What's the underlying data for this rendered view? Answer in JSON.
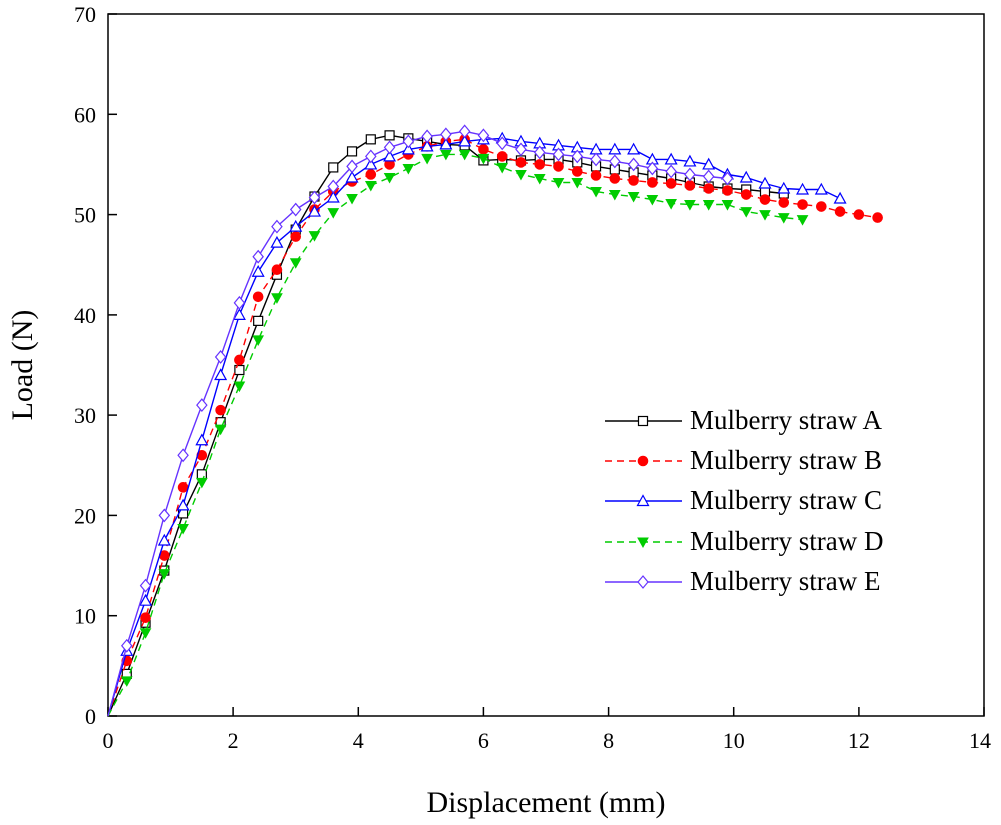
{
  "chart_data": {
    "type": "line",
    "title": "",
    "xlabel": "Displacement (mm)",
    "ylabel": "Load (N)",
    "xlim": [
      0,
      14
    ],
    "ylim": [
      0,
      70
    ],
    "x_ticks": [
      0,
      2,
      4,
      6,
      8,
      10,
      12,
      14
    ],
    "y_ticks": [
      0,
      10,
      20,
      30,
      40,
      50,
      60,
      70
    ],
    "grid": false,
    "legend_position": "center-right",
    "series": [
      {
        "name": "Mulberry straw A",
        "color": "#000000",
        "dashed": false,
        "marker": "square-open",
        "x": [
          0,
          0.3,
          0.6,
          0.9,
          1.2,
          1.5,
          1.8,
          2.1,
          2.4,
          2.7,
          3.0,
          3.3,
          3.6,
          3.9,
          4.2,
          4.5,
          4.8,
          5.1,
          5.4,
          5.7,
          6.0,
          6.3,
          6.6,
          6.9,
          7.2,
          7.5,
          7.8,
          8.1,
          8.4,
          8.7,
          9.0,
          9.3,
          9.6,
          9.9,
          10.2,
          10.5,
          10.8
        ],
        "y": [
          0,
          4.2,
          9.3,
          14.5,
          20.2,
          24.1,
          29.3,
          34.5,
          39.4,
          44.0,
          48.5,
          51.8,
          54.7,
          56.3,
          57.5,
          57.9,
          57.6,
          57.3,
          57.0,
          56.9,
          55.4,
          55.5,
          55.4,
          55.5,
          55.5,
          55.2,
          54.8,
          54.5,
          54.2,
          53.9,
          53.6,
          53.2,
          52.8,
          52.6,
          52.5,
          52.3,
          52.1
        ]
      },
      {
        "name": "Mulberry straw B",
        "color": "#ff0000",
        "dashed": true,
        "marker": "circle-filled",
        "x": [
          0,
          0.3,
          0.6,
          0.9,
          1.2,
          1.5,
          1.8,
          2.1,
          2.4,
          2.7,
          3.0,
          3.3,
          3.6,
          3.9,
          4.2,
          4.5,
          4.8,
          5.1,
          5.4,
          5.7,
          6.0,
          6.3,
          6.6,
          6.9,
          7.2,
          7.5,
          7.8,
          8.1,
          8.4,
          8.7,
          9.0,
          9.3,
          9.6,
          9.9,
          10.2,
          10.5,
          10.8,
          11.1,
          11.4,
          11.7,
          12.0,
          12.3
        ],
        "y": [
          0,
          5.5,
          9.8,
          16.0,
          22.8,
          26.0,
          30.5,
          35.5,
          41.8,
          44.5,
          47.8,
          50.5,
          52.3,
          53.3,
          54.0,
          55.0,
          56.0,
          56.8,
          57.3,
          57.5,
          56.5,
          55.8,
          55.2,
          55.0,
          54.8,
          54.3,
          53.9,
          53.6,
          53.4,
          53.2,
          53.1,
          52.9,
          52.6,
          52.4,
          52.0,
          51.5,
          51.2,
          51.0,
          50.8,
          50.3,
          50.0,
          49.7
        ]
      },
      {
        "name": "Mulberry straw C",
        "color": "#0000ff",
        "dashed": false,
        "marker": "triangle-open",
        "x": [
          0,
          0.3,
          0.6,
          0.9,
          1.2,
          1.5,
          1.8,
          2.1,
          2.4,
          2.7,
          3.0,
          3.3,
          3.6,
          3.9,
          4.2,
          4.5,
          4.8,
          5.1,
          5.4,
          5.7,
          6.0,
          6.3,
          6.6,
          6.9,
          7.2,
          7.5,
          7.8,
          8.1,
          8.4,
          8.7,
          9.0,
          9.3,
          9.6,
          9.9,
          10.2,
          10.5,
          10.8,
          11.1,
          11.4,
          11.7
        ],
        "y": [
          0,
          6.5,
          11.5,
          17.5,
          21.0,
          27.5,
          34.0,
          40.0,
          44.3,
          47.2,
          48.8,
          50.3,
          51.7,
          53.7,
          55.0,
          55.8,
          56.5,
          56.8,
          57.0,
          57.3,
          57.5,
          57.6,
          57.3,
          57.1,
          56.9,
          56.7,
          56.5,
          56.5,
          56.5,
          55.5,
          55.5,
          55.3,
          55.0,
          54.0,
          53.7,
          53.1,
          52.6,
          52.5,
          52.5,
          51.6
        ]
      },
      {
        "name": "Mulberry straw D",
        "color": "#00cc00",
        "dashed": true,
        "marker": "triangle-down-filled",
        "x": [
          0,
          0.3,
          0.6,
          0.9,
          1.2,
          1.5,
          1.8,
          2.1,
          2.4,
          2.7,
          3.0,
          3.3,
          3.6,
          3.9,
          4.2,
          4.5,
          4.8,
          5.1,
          5.4,
          5.7,
          6.0,
          6.3,
          6.6,
          6.9,
          7.2,
          7.5,
          7.8,
          8.1,
          8.4,
          8.7,
          9.0,
          9.3,
          9.6,
          9.9,
          10.2,
          10.5,
          10.8,
          11.1
        ],
        "y": [
          0,
          3.5,
          8.3,
          14.2,
          18.7,
          23.3,
          28.6,
          32.9,
          37.5,
          41.7,
          45.2,
          47.9,
          50.2,
          51.6,
          52.9,
          53.7,
          54.6,
          55.6,
          56.0,
          56.0,
          55.6,
          54.7,
          54.0,
          53.6,
          53.2,
          53.2,
          52.3,
          52.0,
          51.8,
          51.5,
          51.1,
          51.0,
          51.0,
          51.0,
          50.3,
          50.0,
          49.7,
          49.5
        ]
      },
      {
        "name": "Mulberry straw E",
        "color": "#6633ff",
        "dashed": false,
        "marker": "diamond-open",
        "x": [
          0,
          0.3,
          0.6,
          0.9,
          1.2,
          1.5,
          1.8,
          2.1,
          2.4,
          2.7,
          3.0,
          3.3,
          3.6,
          3.9,
          4.2,
          4.5,
          4.8,
          5.1,
          5.4,
          5.7,
          6.0,
          6.3,
          6.6,
          6.9,
          7.2,
          7.5,
          7.8,
          8.1,
          8.4,
          8.7,
          9.0,
          9.3,
          9.6,
          9.9
        ],
        "y": [
          0,
          7.0,
          13.0,
          20.0,
          26.0,
          31.0,
          35.8,
          41.2,
          45.8,
          48.8,
          50.5,
          51.7,
          52.8,
          54.8,
          55.8,
          56.7,
          57.3,
          57.8,
          58.0,
          58.3,
          57.9,
          57.1,
          56.5,
          56.2,
          56.0,
          55.8,
          55.5,
          55.3,
          55.0,
          54.6,
          54.3,
          54.0,
          53.8,
          53.6
        ]
      }
    ]
  }
}
